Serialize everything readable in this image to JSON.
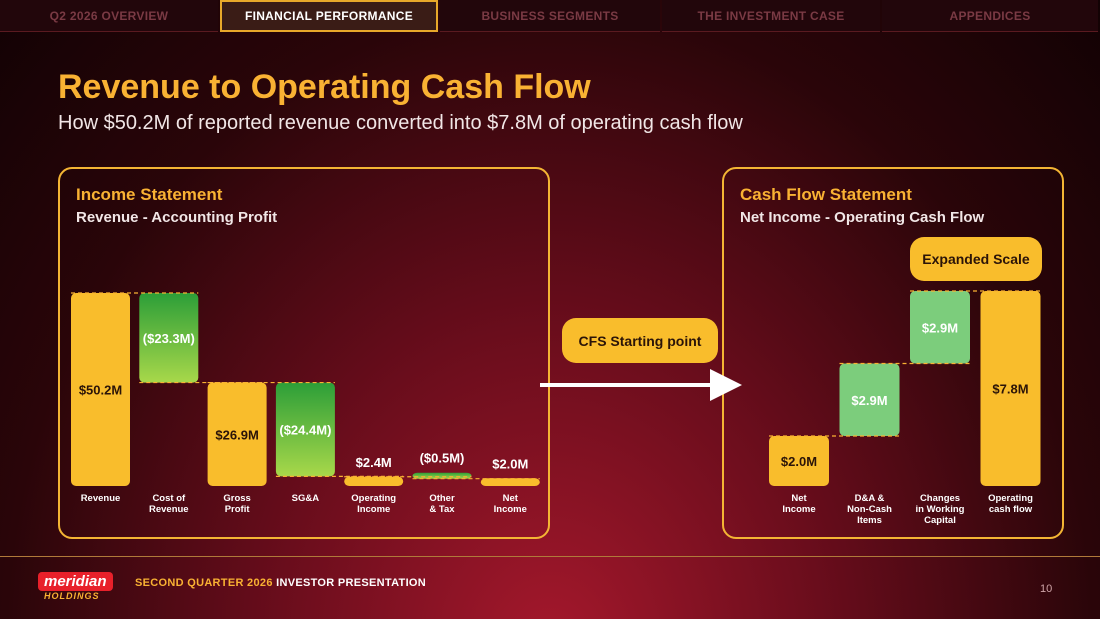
{
  "nav": {
    "tabs": [
      {
        "label": "Q2 2026 OVERVIEW",
        "active": false
      },
      {
        "label": "FINANCIAL PERFORMANCE",
        "active": true
      },
      {
        "label": "BUSINESS SEGMENTS",
        "active": false
      },
      {
        "label": "THE INVESTMENT CASE",
        "active": false
      },
      {
        "label": "APPENDICES",
        "active": false
      }
    ]
  },
  "header": {
    "title": "Revenue to Operating Cash Flow",
    "subtitle": "How $50.2M of reported revenue converted into $7.8M of operating cash flow"
  },
  "income_panel": {
    "title": "Income Statement",
    "subtitle": "Revenue - Accounting Profit"
  },
  "cashflow_panel": {
    "title": "Cash Flow Statement",
    "subtitle": "Net Income - Operating Cash Flow",
    "scale_badge": "Expanded Scale"
  },
  "connector": {
    "label": "CFS Starting point"
  },
  "colors": {
    "accent": "#f9b233",
    "bar_total": "#f9bd2c",
    "bar_negative_top": "#2fa53a",
    "bar_negative_bottom": "#a6d64a",
    "bar_positive": "#7ccd7c",
    "background_dark": "#120204",
    "background_red": "#a5182c"
  },
  "chart_data": [
    {
      "type": "bar",
      "subtype": "waterfall",
      "title": "Income Statement",
      "categories": [
        "Revenue",
        "Cost of Revenue",
        "Gross Profit",
        "SG&A",
        "Operating Income",
        "Other & Tax",
        "Net Income"
      ],
      "values": [
        50.2,
        -23.3,
        26.9,
        -24.4,
        2.4,
        -0.5,
        2.0
      ],
      "kinds": [
        "total",
        "delta",
        "total",
        "delta",
        "total",
        "delta",
        "total"
      ],
      "value_labels": [
        "$50.2M",
        "($23.3M)",
        "$26.9M",
        "($24.4M)",
        "$2.4M",
        "($0.5M)",
        "$2.0M"
      ],
      "ylim": [
        0,
        50.2
      ]
    },
    {
      "type": "bar",
      "subtype": "waterfall",
      "title": "Cash Flow Statement",
      "categories": [
        "Net Income",
        "D&A & Non-Cash Items",
        "Changes in Working Capital",
        "Operating cash flow"
      ],
      "values": [
        2.0,
        2.9,
        2.9,
        7.8
      ],
      "kinds": [
        "total",
        "delta",
        "delta",
        "total"
      ],
      "value_labels": [
        "$2.0M",
        "$2.9M",
        "$2.9M",
        "$7.8M"
      ],
      "ylim": [
        0,
        7.8
      ]
    }
  ],
  "footer": {
    "logo_main": "meridian",
    "logo_sub": "HOLDINGS",
    "text_highlight": "SECOND QUARTER 2026",
    "text_rest": "INVESTOR PRESENTATION",
    "page_number": "10"
  }
}
